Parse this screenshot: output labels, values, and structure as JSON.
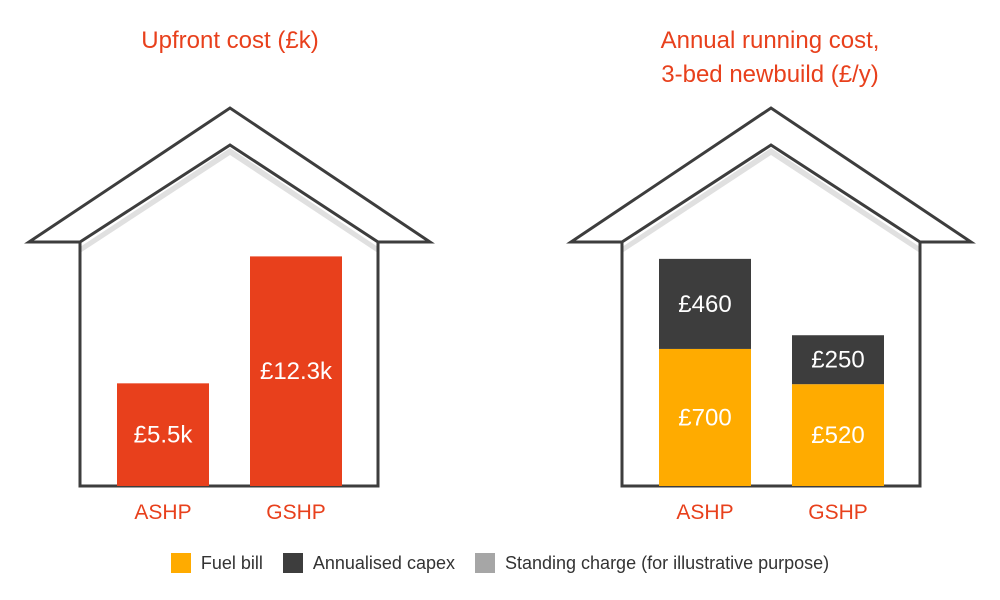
{
  "chart_data": [
    {
      "type": "bar",
      "title": "Upfront cost (£k)",
      "categories": [
        "ASHP",
        "GSHP"
      ],
      "values": [
        5.5,
        12.3
      ],
      "labels": [
        "£5.5k",
        "£12.3k"
      ],
      "ylim": [
        0,
        15
      ],
      "color": "#e8401c",
      "grid": false
    },
    {
      "type": "bar",
      "stacked": true,
      "title_lines": [
        "Annual running cost,",
        "3-bed newbuild (£/y)"
      ],
      "categories": [
        "ASHP",
        "GSHP"
      ],
      "series": [
        {
          "name": "Fuel bill",
          "values": [
            700,
            520
          ],
          "labels": [
            "£700",
            "£520"
          ],
          "color": "#ffab00"
        },
        {
          "name": "Annualised capex",
          "values": [
            460,
            250
          ],
          "labels": [
            "£460",
            "£250"
          ],
          "color": "#3d3d3d"
        }
      ],
      "ylim": [
        0,
        1430
      ],
      "grid": false
    }
  ],
  "legend": [
    {
      "label": "Fuel bill",
      "color": "#ffab00"
    },
    {
      "label": "Annualised capex",
      "color": "#3d3d3d"
    },
    {
      "label": "Standing charge (for illustrative purpose)",
      "color": "#a6a6a6"
    }
  ],
  "colors": {
    "accent": "#e8401c",
    "house_outline": "#3d3d3d",
    "roof_shadow": "#e0e0e0"
  }
}
